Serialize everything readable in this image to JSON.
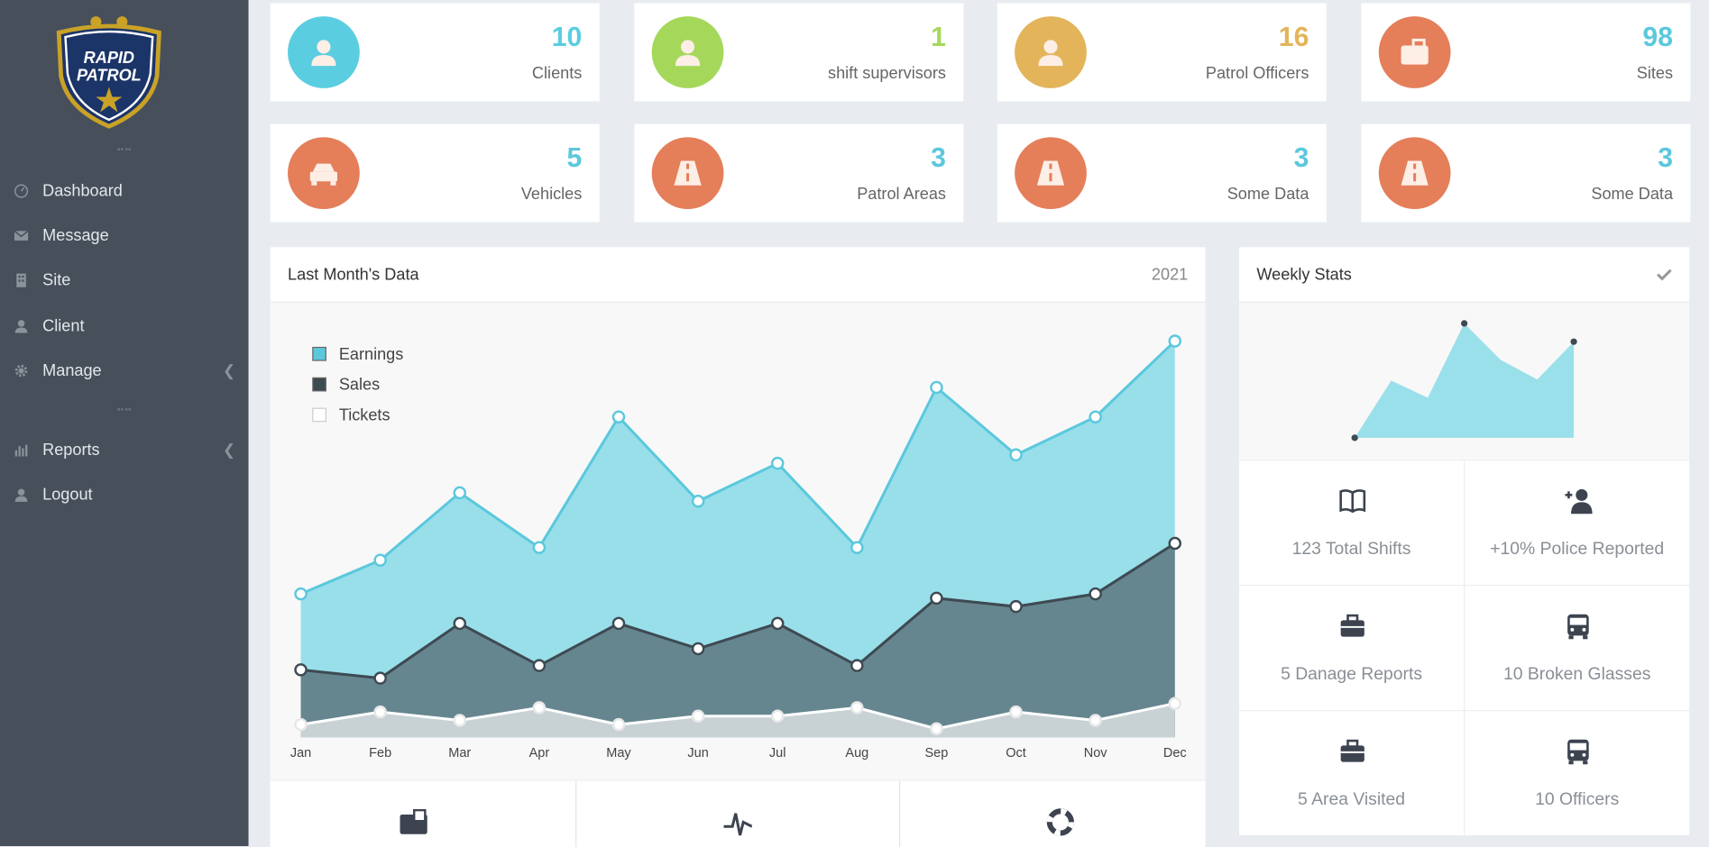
{
  "sidebar": {
    "logo": {
      "line1": "RAPID",
      "line2": "PATROL"
    },
    "menu": [
      "Dashboard",
      "Message",
      "Site",
      "Client",
      "Manage"
    ],
    "menu2": [
      "Reports",
      "Logout"
    ]
  },
  "stats": [
    {
      "value": 10,
      "label": "Clients"
    },
    {
      "value": 1,
      "label": "shift supervisors"
    },
    {
      "value": 16,
      "label": "Patrol Officers"
    },
    {
      "value": 98,
      "label": "Sites"
    },
    {
      "value": 5,
      "label": "Vehicles"
    },
    {
      "value": 3,
      "label": "Patrol Areas"
    },
    {
      "value": 3,
      "label": "Some Data"
    },
    {
      "value": 3,
      "label": "Some Data"
    }
  ],
  "chart_data": {
    "type": "area",
    "title": "Last Month's Data",
    "subtitle": "2021",
    "categories": [
      "Jan",
      "Feb",
      "Mar",
      "Apr",
      "May",
      "Jun",
      "Jul",
      "Aug",
      "Sep",
      "Oct",
      "Nov",
      "Dec"
    ],
    "series": [
      {
        "name": "Earnings",
        "color": "#5bc8dc",
        "values": [
          34,
          42,
          58,
          45,
          76,
          56,
          65,
          45,
          83,
          67,
          76,
          94
        ]
      },
      {
        "name": "Sales",
        "color": "#3e4a52",
        "values": [
          16,
          14,
          27,
          17,
          27,
          21,
          27,
          17,
          33,
          31,
          34,
          46
        ]
      },
      {
        "name": "Tickets",
        "color": "#ffffff",
        "values": [
          3,
          6,
          4,
          7,
          3,
          5,
          5,
          7,
          2,
          6,
          4,
          8
        ]
      }
    ],
    "ylim": [
      0,
      100
    ],
    "legend": "top-left"
  },
  "weekly": {
    "title": "Weekly Stats",
    "sparkline": {
      "type": "area",
      "values": [
        0,
        50,
        35,
        100,
        68,
        51,
        84
      ],
      "ylim": [
        0,
        100
      ],
      "color": "#9ae0ea"
    },
    "items": [
      "123 Total Shifts",
      "+10% Police Reported",
      "5 Danage Reports",
      "10 Broken Glasses",
      "5 Area Visited",
      "10 Officers"
    ]
  }
}
